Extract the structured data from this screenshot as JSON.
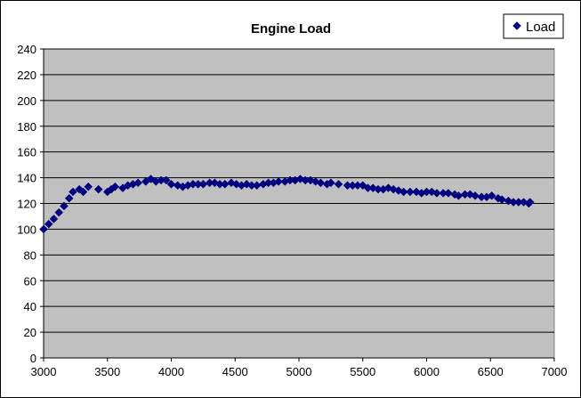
{
  "chart_data": {
    "type": "scatter",
    "title": "Engine Load",
    "xlabel": "",
    "ylabel": "",
    "xlim": [
      3000,
      7000
    ],
    "ylim": [
      0,
      240
    ],
    "xticks": [
      3000,
      3500,
      4000,
      4500,
      5000,
      5500,
      6000,
      6500,
      7000
    ],
    "yticks": [
      0,
      20,
      40,
      60,
      80,
      100,
      120,
      140,
      160,
      180,
      200,
      220,
      240
    ],
    "grid": true,
    "legend": "top-right",
    "colors": {
      "marker": "#000080",
      "plot_bg": "#c0c0c0",
      "grid": "#000000"
    },
    "series": [
      {
        "name": "Load",
        "marker": "diamond",
        "x": [
          3000,
          3040,
          3080,
          3120,
          3160,
          3200,
          3230,
          3280,
          3310,
          3350,
          3430,
          3500,
          3530,
          3560,
          3620,
          3660,
          3700,
          3740,
          3800,
          3840,
          3880,
          3920,
          3960,
          4000,
          4050,
          4090,
          4130,
          4170,
          4210,
          4250,
          4300,
          4340,
          4380,
          4420,
          4470,
          4510,
          4550,
          4590,
          4630,
          4670,
          4720,
          4760,
          4800,
          4840,
          4890,
          4930,
          4970,
          5010,
          5050,
          5090,
          5130,
          5170,
          5220,
          5250,
          5310,
          5380,
          5420,
          5460,
          5500,
          5540,
          5580,
          5620,
          5660,
          5700,
          5740,
          5780,
          5820,
          5870,
          5920,
          5960,
          6000,
          6040,
          6080,
          6130,
          6170,
          6220,
          6250,
          6300,
          6340,
          6380,
          6430,
          6470,
          6510,
          6560,
          6590,
          6640,
          6680,
          6720,
          6760,
          6800,
          6810
        ],
        "y": [
          100,
          104,
          108,
          113,
          118,
          124,
          129,
          131,
          129,
          133,
          131,
          129,
          131,
          133,
          132,
          134,
          135,
          136,
          137,
          139,
          137,
          138,
          138,
          135,
          134,
          133,
          134,
          135,
          135,
          135,
          136,
          136,
          135,
          135,
          136,
          135,
          134,
          135,
          134,
          134,
          135,
          136,
          136,
          137,
          137,
          138,
          138,
          139,
          138,
          138,
          137,
          136,
          135,
          136,
          135,
          134,
          134,
          134,
          134,
          132,
          132,
          131,
          131,
          132,
          131,
          130,
          129,
          129,
          129,
          128,
          129,
          129,
          128,
          128,
          128,
          127,
          126,
          127,
          127,
          126,
          125,
          125,
          126,
          124,
          123,
          122,
          121,
          121,
          121,
          120,
          121
        ]
      }
    ]
  }
}
